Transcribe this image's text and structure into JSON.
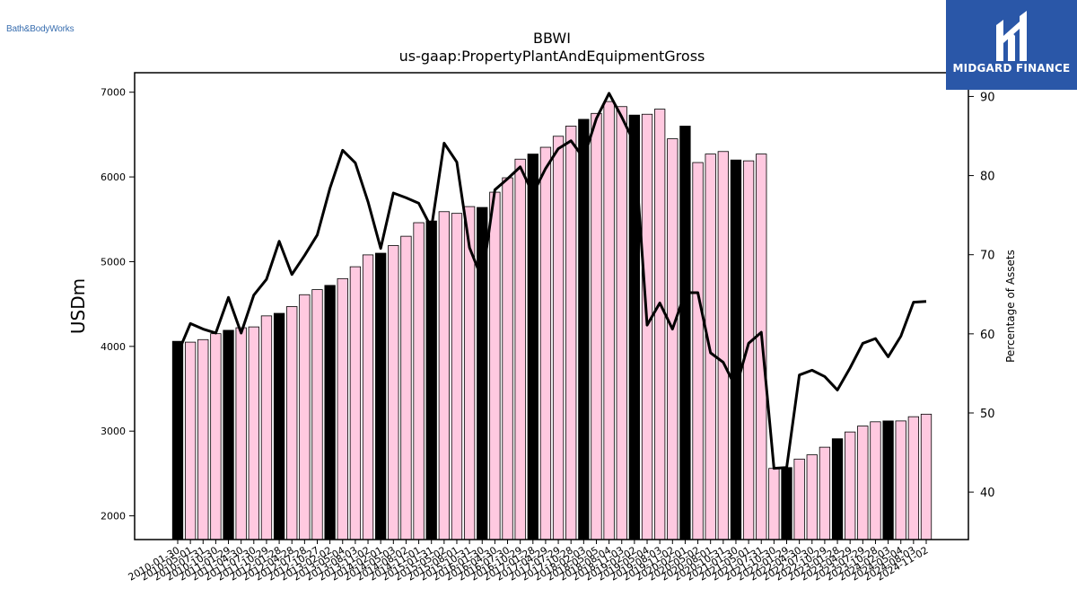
{
  "logos": {
    "left_text": "Bath&BodyWorks",
    "right_text": "MIDGARD FINANCE",
    "right_icon": "midgard-logo-icon",
    "right_bg_color": "#2a57a8"
  },
  "chart_data": {
    "type": "bar",
    "title": "BBWI",
    "subtitle": "us-gaap:PropertyPlantAndEquipmentGross",
    "ylabel": "USDm",
    "y2label": "Percentage of Assets",
    "ylim": [
      1720,
      7230
    ],
    "y2lim": [
      34,
      93
    ],
    "yticks": [
      2000,
      3000,
      4000,
      5000,
      6000,
      7000
    ],
    "y2ticks": [
      40,
      50,
      60,
      70,
      80,
      90
    ],
    "categories": [
      "2010-01-30",
      "2010-05-01",
      "2010-07-31",
      "2010-10-30",
      "2011-01-29",
      "2011-04-30",
      "2011-07-30",
      "2011-10-29",
      "2012-01-28",
      "2012-04-28",
      "2012-07-28",
      "2012-10-27",
      "2013-02-02",
      "2013-05-04",
      "2013-08-03",
      "2013-11-02",
      "2014-02-01",
      "2014-05-03",
      "2014-08-02",
      "2014-11-01",
      "2015-01-31",
      "2015-05-02",
      "2015-08-01",
      "2015-10-31",
      "2016-01-30",
      "2016-04-30",
      "2016-07-30",
      "2016-10-29",
      "2017-01-28",
      "2017-04-29",
      "2017-07-29",
      "2017-10-28",
      "2018-02-03",
      "2018-05-05",
      "2018-08-04",
      "2018-11-03",
      "2019-02-02",
      "2019-05-04",
      "2019-08-03",
      "2019-11-02",
      "2020-02-01",
      "2020-05-02",
      "2020-08-01",
      "2020-10-31",
      "2021-01-30",
      "2021-05-01",
      "2021-07-31",
      "2021-10-30",
      "2022-01-29",
      "2022-04-30",
      "2022-07-30",
      "2022-10-29",
      "2023-01-28",
      "2023-04-29",
      "2023-07-29",
      "2023-10-28",
      "2024-02-03",
      "2024-05-04",
      "2024-08-03",
      "2024-11-02"
    ],
    "tick_labels": [
      "2010-01-30",
      "2010-05-01",
      "2010-07-31",
      "2010-10-30",
      "2011-01-29",
      "2011-04-30",
      "2011-07-30",
      "2011-10-29",
      "2012-01-28",
      "2012-04-28",
      "2012-07-28",
      "2012-10-27",
      "2013-02-02",
      "2013-05-04",
      "2013-08-03",
      "2013-11-02",
      "2014-02-01",
      "2014-05-03",
      "2014-08-02",
      "2014-11-01",
      "2015-01-31",
      "2015-05-02",
      "2015-08-01",
      "2015-10-31",
      "2016-01-30",
      "2016-04-30",
      "2016-07-30",
      "2016-10-29",
      "2017-01-28",
      "2017-04-29",
      "2017-07-29",
      "2017-10-28",
      "2018-02-03",
      "2018-05-05",
      "2018-08-04",
      "2018-11-03",
      "2019-02-02",
      "2019-05-04",
      "2019-08-03",
      "2019-11-02",
      "2020-02-01",
      "2020-05-02",
      "2020-08-01",
      "2020-10-31",
      "2021-01-30",
      "2021-05-01",
      "2021-07-31",
      "2021-10-30",
      "2022-01-29",
      "2022-04-30",
      "2022-07-30",
      "2022-10-29",
      "2023-01-28",
      "2023-04-29",
      "2023-07-29",
      "2023-10-28",
      "2024-02-03",
      "2024-05-04",
      "2024-08-03",
      "2024-11-02"
    ],
    "values": [
      4060,
      4050,
      4080,
      4150,
      4190,
      4220,
      4230,
      4360,
      4390,
      4470,
      4610,
      4670,
      4720,
      4800,
      4940,
      5080,
      5100,
      5190,
      5300,
      5460,
      5480,
      5590,
      5570,
      5650,
      5640,
      5820,
      5990,
      6210,
      6270,
      6350,
      6480,
      6600,
      6680,
      6750,
      6890,
      6830,
      6730,
      6740,
      6800,
      6450,
      6600,
      6170,
      6270,
      6300,
      6200,
      6190,
      6270,
      2560,
      2570,
      2670,
      2720,
      2810,
      2910,
      2990,
      3060,
      3110,
      3120,
      3120,
      3170,
      3200
    ],
    "fiscal_year_end": [
      true,
      false,
      false,
      false,
      true,
      false,
      false,
      false,
      true,
      false,
      false,
      false,
      true,
      false,
      false,
      false,
      true,
      false,
      false,
      false,
      true,
      false,
      false,
      false,
      true,
      false,
      false,
      false,
      true,
      false,
      false,
      false,
      true,
      false,
      false,
      false,
      true,
      false,
      false,
      false,
      true,
      false,
      false,
      false,
      true,
      false,
      false,
      false,
      true,
      false,
      false,
      false,
      true,
      false,
      false,
      false,
      true,
      false,
      false,
      false
    ],
    "line_values": [
      57.5,
      61.3,
      60.6,
      60.1,
      64.6,
      60.1,
      64.9,
      66.9,
      71.7,
      67.5,
      69.9,
      72.5,
      78.4,
      83.2,
      81.6,
      76.7,
      70.8,
      77.8,
      77.2,
      76.5,
      73.4,
      84.1,
      81.7,
      70.9,
      66.9,
      78.2,
      79.6,
      81.1,
      77.7,
      80.9,
      83.4,
      84.4,
      82.2,
      87.2,
      90.4,
      87.4,
      84.1,
      61.1,
      63.9,
      60.6,
      65.2,
      65.2,
      57.6,
      56.4,
      53.2,
      58.8,
      60.2,
      43.0,
      43.1,
      54.8,
      55.4,
      54.6,
      52.9,
      55.7,
      58.8,
      59.4,
      57.1,
      59.7,
      64.0,
      64.1
    ],
    "colors": {
      "bar_regular": "#ffc9e0",
      "bar_fiscal_year_end": "#000000",
      "bar_edge": "#000000",
      "line": "#000000"
    },
    "grid": false,
    "legend": "none"
  }
}
